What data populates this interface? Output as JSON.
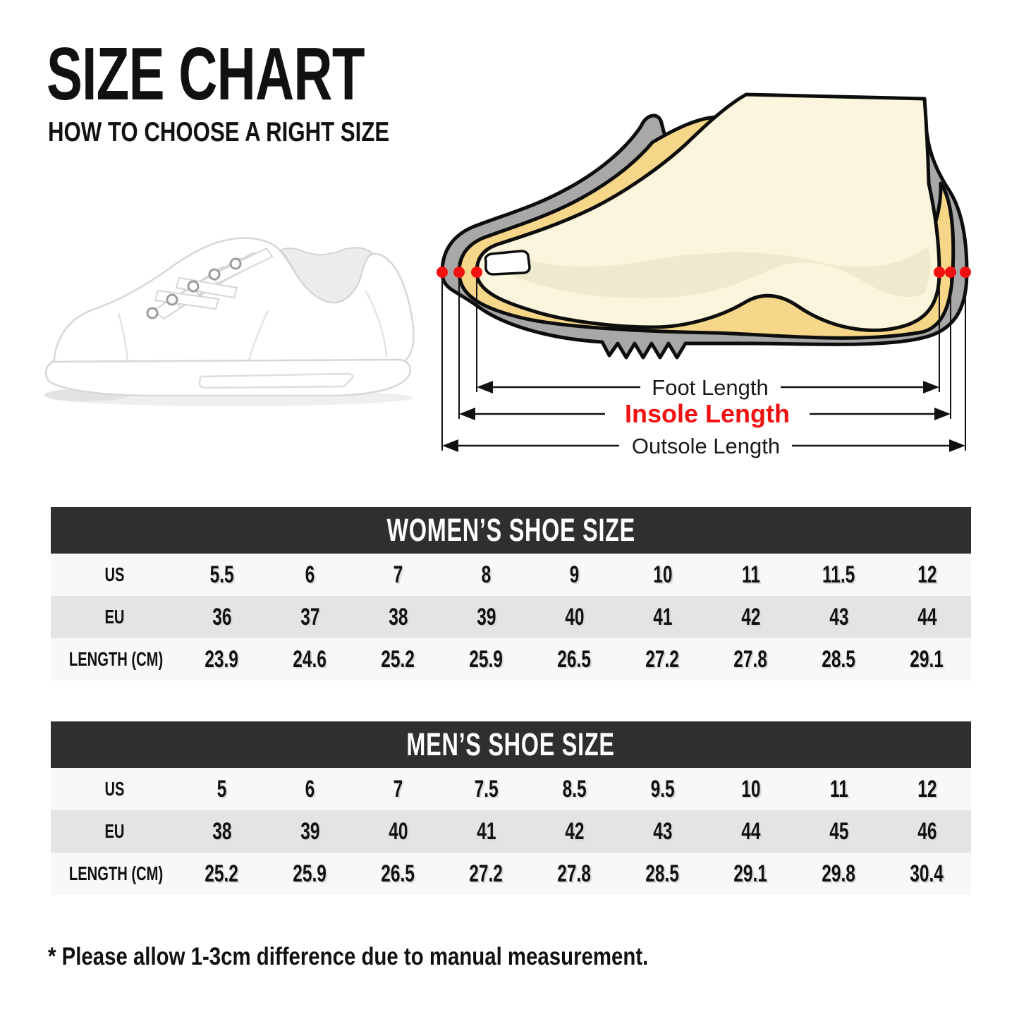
{
  "header": {
    "title": "SIZE CHART",
    "subtitle": "HOW TO CHOOSE A RIGHT SIZE"
  },
  "diagram": {
    "labels": {
      "foot": "Foot Length",
      "insole": "Insole Length",
      "outsole": "Outsole Length"
    },
    "colors": {
      "shoe_gray": "#a8a8a8",
      "insole_yellow": "#f6d688",
      "foot_cream": "#faf5dc",
      "foot_shade": "#efe9ce",
      "marker_red": "#f21111",
      "outline": "#0d0d0d"
    }
  },
  "tables": [
    {
      "title": "WOMEN’S SHOE SIZE",
      "rows": [
        {
          "label": "US",
          "values": [
            "5.5",
            "6",
            "7",
            "8",
            "9",
            "10",
            "11",
            "11.5",
            "12"
          ]
        },
        {
          "label": "EU",
          "values": [
            "36",
            "37",
            "38",
            "39",
            "40",
            "41",
            "42",
            "43",
            "44"
          ]
        },
        {
          "label": "LENGTH (CM)",
          "values": [
            "23.9",
            "24.6",
            "25.2",
            "25.9",
            "26.5",
            "27.2",
            "27.8",
            "28.5",
            "29.1"
          ]
        }
      ]
    },
    {
      "title": "MEN’S SHOE SIZE",
      "rows": [
        {
          "label": "US",
          "values": [
            "5",
            "6",
            "7",
            "7.5",
            "8.5",
            "9.5",
            "10",
            "11",
            "12"
          ]
        },
        {
          "label": "EU",
          "values": [
            "38",
            "39",
            "40",
            "41",
            "42",
            "43",
            "44",
            "45",
            "46"
          ]
        },
        {
          "label": "LENGTH (CM)",
          "values": [
            "25.2",
            "25.9",
            "26.5",
            "27.2",
            "27.8",
            "28.5",
            "29.1",
            "29.8",
            "30.4"
          ]
        }
      ]
    }
  ],
  "footnote": "* Please allow 1-3cm difference due to manual measurement.",
  "table_style": {
    "header_band_color": "#2f2f2f",
    "row_light": "#f8f8f8",
    "row_gray": "#e4e4e4"
  }
}
